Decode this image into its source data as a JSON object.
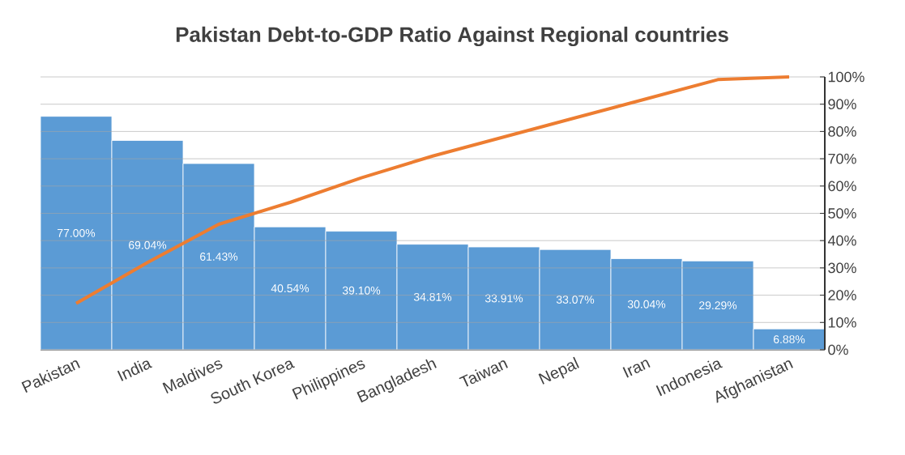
{
  "chart_data": {
    "type": "bar",
    "title": "Pakistan Debt-to-GDP Ratio Against Regional countries",
    "categories": [
      "Pakistan",
      "India",
      "Maldives",
      "South Korea",
      "Philippines",
      "Bangladesh",
      "Taiwan",
      "Nepal",
      "Iran",
      "Indonesia",
      "Afghanistan"
    ],
    "ylim": [
      0,
      90
    ],
    "y2lim": [
      0,
      100
    ],
    "y2ticks": [
      {
        "value": 0,
        "label": "0%"
      },
      {
        "value": 10,
        "label": "10%"
      },
      {
        "value": 20,
        "label": "20%"
      },
      {
        "value": 30,
        "label": "30%"
      },
      {
        "value": 40,
        "label": "40%"
      },
      {
        "value": 50,
        "label": "50%"
      },
      {
        "value": 60,
        "label": "60%"
      },
      {
        "value": 70,
        "label": "70%"
      },
      {
        "value": 80,
        "label": "80%"
      },
      {
        "value": 90,
        "label": "90%"
      },
      {
        "value": 100,
        "label": "100%"
      }
    ],
    "grid": "y",
    "series": [
      {
        "color": "#5b9bd5",
        "values": [
          77.0,
          69.04,
          61.43,
          40.54,
          39.1,
          34.81,
          33.91,
          33.07,
          30.04,
          29.29,
          6.88
        ],
        "value_labels": [
          "77.00%",
          "69.04%",
          "61.43%",
          "40.54%",
          "39.10%",
          "34.81%",
          "33.91%",
          "33.07%",
          "30.04%",
          "29.29%",
          "6.88%"
        ]
      },
      {
        "type": "line",
        "axis": "y2",
        "color": "#ed7d31",
        "values": [
          17,
          32,
          46,
          54,
          63,
          71,
          78,
          85,
          92,
          99,
          100
        ]
      }
    ]
  }
}
